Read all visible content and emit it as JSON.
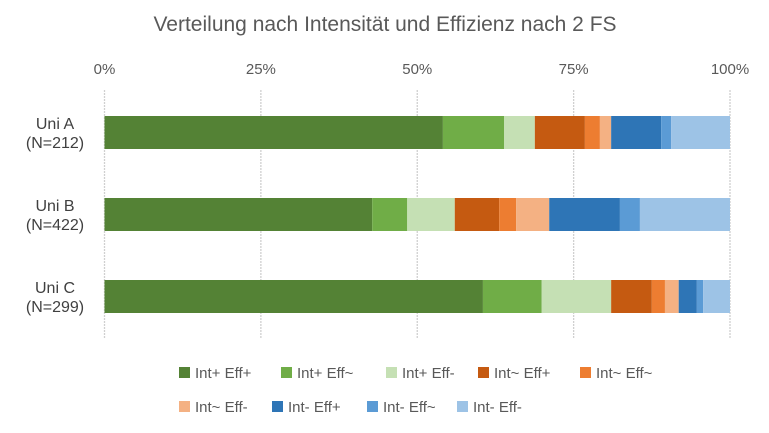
{
  "chart_data": {
    "type": "bar",
    "orientation": "horizontal",
    "stacked": "percent",
    "title": "Verteilung nach Intensität und Effizienz nach 2 FS",
    "xlabel": "",
    "ylabel": "",
    "xlim": [
      0,
      100
    ],
    "x_ticks": [
      "0%",
      "25%",
      "50%",
      "75%",
      "100%"
    ],
    "x_tick_values": [
      0,
      25,
      50,
      75,
      100
    ],
    "x_axis_position": "top",
    "grid": true,
    "legend_position": "bottom",
    "categories": [
      {
        "line1": "Uni A",
        "line2": "(N=212)"
      },
      {
        "line1": "Uni B",
        "line2": "(N=422)"
      },
      {
        "line1": "Uni C",
        "line2": "(N=299)"
      }
    ],
    "series": [
      {
        "name": "Int+ Eff+",
        "color": "#548235",
        "values": [
          54.1,
          42.8,
          60.5
        ]
      },
      {
        "name": "Int+ Eff~",
        "color": "#70AD47",
        "values": [
          9.8,
          5.6,
          9.4
        ]
      },
      {
        "name": "Int+ Eff-",
        "color": "#C5E0B4",
        "values": [
          4.9,
          7.6,
          11.1
        ]
      },
      {
        "name": "Int~ Eff+",
        "color": "#C55A11",
        "values": [
          8.0,
          7.1,
          6.5
        ]
      },
      {
        "name": "Int~ Eff~",
        "color": "#ED7D31",
        "values": [
          2.4,
          2.7,
          2.1
        ]
      },
      {
        "name": "Int~ Eff-",
        "color": "#F4B183",
        "values": [
          1.8,
          5.3,
          2.2
        ]
      },
      {
        "name": "Int- Eff+",
        "color": "#2E75B6",
        "values": [
          8.0,
          11.3,
          2.9
        ]
      },
      {
        "name": "Int- Eff~",
        "color": "#5B9BD5",
        "values": [
          1.6,
          3.2,
          1.0
        ]
      },
      {
        "name": "Int- Eff-",
        "color": "#9DC3E6",
        "values": [
          9.4,
          14.4,
          4.3
        ]
      }
    ]
  }
}
